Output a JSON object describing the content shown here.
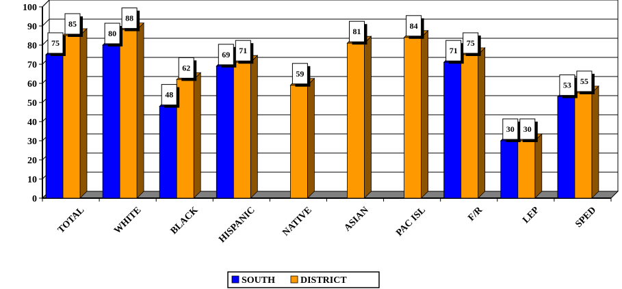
{
  "chart_data": {
    "type": "bar",
    "categories": [
      "TOTAL",
      "WHITE",
      "BLACK",
      "HISPANIC",
      "NATIVE",
      "ASIAN",
      "PAC ISL",
      "F/R",
      "LEP",
      "SPED"
    ],
    "series": [
      {
        "name": "SOUTH",
        "values": [
          75,
          80,
          48,
          69,
          null,
          null,
          null,
          71,
          30,
          53
        ],
        "color": "#0000ff"
      },
      {
        "name": "DISTRICT",
        "values": [
          85,
          88,
          62,
          71,
          59,
          81,
          84,
          75,
          30,
          55
        ],
        "color": "#ff9900"
      }
    ],
    "ylim": [
      0,
      100
    ],
    "yticks": [
      0,
      10,
      20,
      30,
      40,
      50,
      60,
      70,
      80,
      90,
      100
    ],
    "grid": true,
    "three_d": true,
    "data_labels": true,
    "legend_position": "bottom-center",
    "colors": {
      "floor": "#808080",
      "frame": "#000000",
      "label_shadow": "#000000"
    }
  }
}
